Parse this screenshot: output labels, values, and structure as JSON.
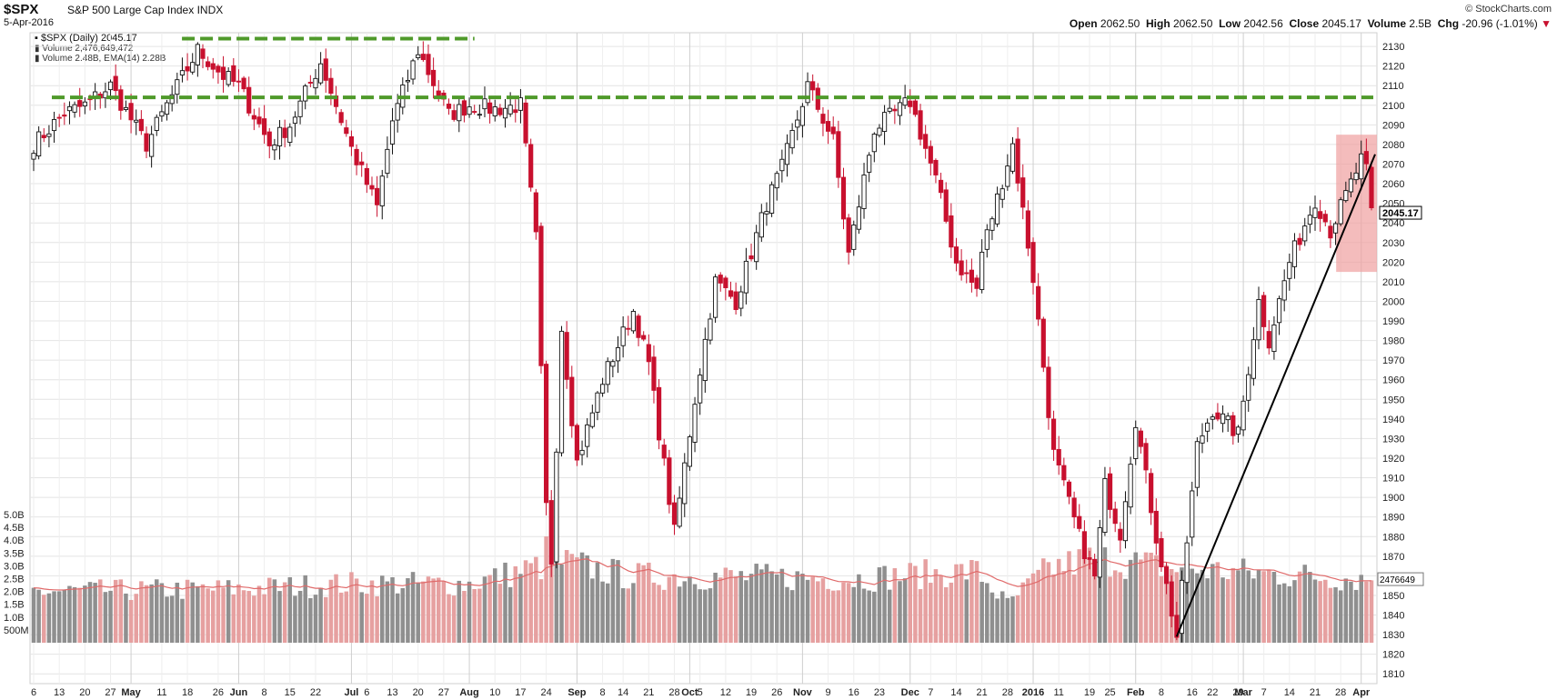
{
  "header": {
    "symbol": "$SPX",
    "name": "S&P 500 Large Cap Index",
    "exchange": "INDX",
    "date": "5-Apr-2016",
    "brand": "© StockCharts.com",
    "open_label": "Open",
    "open": "2062.50",
    "high_label": "High",
    "high": "2062.50",
    "low_label": "Low",
    "low": "2042.56",
    "close_label": "Close",
    "close": "2045.17",
    "volume_label": "Volume",
    "volume": "2.5B",
    "chg_label": "Chg",
    "chg": "-20.96 (-1.01%)",
    "chg_arrow": "▼"
  },
  "legend": {
    "price_series": "$SPX (Daily) 2045.17",
    "volume_series": "Volume 2,476,649,472",
    "ema_series": "Volume 2.48B, EMA(14) 2.28B"
  },
  "colors": {
    "up": "#111111",
    "down": "#c8102e",
    "volume_up": "#8f8f8f",
    "volume_down": "#e6a0a0",
    "ema": "#e06a6a",
    "resistance": "#4f9a2a",
    "highlight": "#f0a0a0",
    "grid": "#e4e4e4"
  },
  "chart_data": {
    "type": "candlestick",
    "title": "$SPX (Daily) 2045.17",
    "price_axis": {
      "ylim": [
        1805,
        2137
      ],
      "ticks": [
        1810,
        1820,
        1830,
        1840,
        1850,
        1860,
        1870,
        1880,
        1890,
        1900,
        1910,
        1920,
        1930,
        1940,
        1950,
        1960,
        1970,
        1980,
        1990,
        2000,
        2010,
        2020,
        2030,
        2040,
        2050,
        2060,
        2070,
        2080,
        2090,
        2100,
        2110,
        2120,
        2130
      ]
    },
    "volume_axis": {
      "ticks": [
        "500M",
        "1.0B",
        "1.5B",
        "2.0B",
        "2.5B",
        "3.0B",
        "3.5B",
        "4.0B",
        "4.5B",
        "5.0B"
      ],
      "max_billions": 5.2
    },
    "last_price_label": "2045.17",
    "last_volume_label": "2476649",
    "date_labels": [
      "6",
      "13",
      "20",
      "27",
      "May",
      "11",
      "18",
      "26",
      "Jun",
      "8",
      "15",
      "22",
      "Jul",
      "6",
      "13",
      "20",
      "27",
      "Aug",
      "10",
      "17",
      "24",
      "Sep",
      "8",
      "14",
      "21",
      "28",
      "Oct",
      "5",
      "12",
      "19",
      "26",
      "Nov",
      "9",
      "16",
      "23",
      "Dec",
      "7",
      "14",
      "21",
      "28",
      "2016",
      "11",
      "19",
      "25",
      "Feb",
      "8",
      "16",
      "22",
      "29",
      "Mar",
      "7",
      "14",
      "21",
      "28",
      "Apr"
    ],
    "date_bold": [
      "May",
      "Jun",
      "Jul",
      "Aug",
      "Sep",
      "Oct",
      "Nov",
      "Dec",
      "2016",
      "Feb",
      "Mar",
      "Apr"
    ],
    "resistance_levels": [
      2134,
      2104
    ],
    "trendline": {
      "from": [
        "Feb 11 2016",
        1829
      ],
      "to": [
        "Apr 6 2016",
        2075
      ]
    },
    "highlight_zone": {
      "from": "Mar 28 2016",
      "to": "Apr 5 2016",
      "ylim": [
        2015,
        2085
      ]
    },
    "anchors": [
      [
        "2015-04-06",
        2080
      ],
      [
        "2015-04-14",
        2096
      ],
      [
        "2015-04-20",
        2100
      ],
      [
        "2015-04-27",
        2110
      ],
      [
        "2015-05-06",
        2080
      ],
      [
        "2015-05-12",
        2100
      ],
      [
        "2015-05-20",
        2128
      ],
      [
        "2015-05-27",
        2115
      ],
      [
        "2015-06-01",
        2110
      ],
      [
        "2015-06-09",
        2080
      ],
      [
        "2015-06-15",
        2090
      ],
      [
        "2015-06-23",
        2122
      ],
      [
        "2015-07-01",
        2078
      ],
      [
        "2015-07-08",
        2048
      ],
      [
        "2015-07-13",
        2092
      ],
      [
        "2015-07-20",
        2128
      ],
      [
        "2015-07-28",
        2095
      ],
      [
        "2015-08-03",
        2100
      ],
      [
        "2015-08-10",
        2098
      ],
      [
        "2015-08-17",
        2100
      ],
      [
        "2015-08-20",
        2032
      ],
      [
        "2015-08-24",
        1895
      ],
      [
        "2015-08-25",
        1868
      ],
      [
        "2015-08-27",
        1987
      ],
      [
        "2015-09-01",
        1918
      ],
      [
        "2015-09-08",
        1960
      ],
      [
        "2015-09-16",
        1995
      ],
      [
        "2015-09-21",
        1968
      ],
      [
        "2015-09-28",
        1882
      ],
      [
        "2015-10-02",
        1950
      ],
      [
        "2015-10-08",
        2010
      ],
      [
        "2015-10-14",
        2000
      ],
      [
        "2015-10-22",
        2050
      ],
      [
        "2015-10-27",
        2068
      ],
      [
        "2015-11-03",
        2110
      ],
      [
        "2015-11-10",
        2082
      ],
      [
        "2015-11-13",
        2024
      ],
      [
        "2015-11-20",
        2088
      ],
      [
        "2015-12-01",
        2102
      ],
      [
        "2015-12-08",
        2062
      ],
      [
        "2015-12-14",
        2020
      ],
      [
        "2015-12-18",
        2006
      ],
      [
        "2015-12-21",
        2025
      ],
      [
        "2015-12-29",
        2080
      ],
      [
        "2016-01-04",
        2012
      ],
      [
        "2016-01-08",
        1922
      ],
      [
        "2016-01-15",
        1880
      ],
      [
        "2016-01-20",
        1859
      ],
      [
        "2016-01-22",
        1906
      ],
      [
        "2016-01-27",
        1882
      ],
      [
        "2016-02-01",
        1940
      ],
      [
        "2016-02-05",
        1880
      ],
      [
        "2016-02-11",
        1829
      ],
      [
        "2016-02-17",
        1926
      ],
      [
        "2016-02-22",
        1945
      ],
      [
        "2016-02-29",
        1932
      ],
      [
        "2016-03-04",
        2000
      ],
      [
        "2016-03-08",
        1980
      ],
      [
        "2016-03-14",
        2020
      ],
      [
        "2016-03-21",
        2052
      ],
      [
        "2016-03-24",
        2036
      ],
      [
        "2016-04-01",
        2072
      ],
      [
        "2016-04-04",
        2066
      ],
      [
        "2016-04-05",
        2045
      ]
    ],
    "volume_anchors": [
      [
        "2015-04-06",
        2.0
      ],
      [
        "2015-06-01",
        2.1
      ],
      [
        "2015-07-01",
        2.3
      ],
      [
        "2015-08-03",
        2.3
      ],
      [
        "2015-08-21",
        3.0
      ],
      [
        "2015-08-24",
        3.5
      ],
      [
        "2015-08-26",
        3.2
      ],
      [
        "2015-09-15",
        2.6
      ],
      [
        "2015-10-01",
        2.6
      ],
      [
        "2015-11-15",
        2.5
      ],
      [
        "2015-12-18",
        2.8
      ],
      [
        "2015-12-28",
        1.5
      ],
      [
        "2016-01-07",
        2.9
      ],
      [
        "2016-01-20",
        3.3
      ],
      [
        "2016-02-11",
        2.9
      ],
      [
        "2016-03-18",
        2.6
      ],
      [
        "2016-04-05",
        2.48
      ]
    ]
  }
}
